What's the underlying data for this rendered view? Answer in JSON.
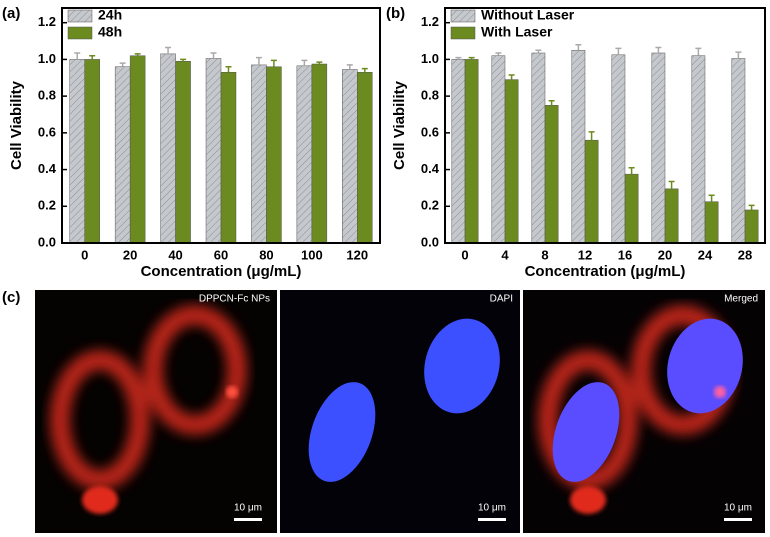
{
  "chart_data": [
    {
      "type": "bar",
      "ylabel": "Cell Viability",
      "xlabel": "Concentration (μg/mL)",
      "categories": [
        "0",
        "20",
        "40",
        "60",
        "80",
        "100",
        "120"
      ],
      "series": [
        {
          "name": "24h",
          "color": "#c5c8cc",
          "hatch": true,
          "values": [
            1.0,
            0.96,
            1.03,
            1.005,
            0.97,
            0.965,
            0.945
          ],
          "errors": [
            0.035,
            0.02,
            0.035,
            0.03,
            0.04,
            0.03,
            0.025
          ]
        },
        {
          "name": "48h",
          "color": "#6b8a1f",
          "hatch": false,
          "values": [
            1.0,
            1.02,
            0.99,
            0.93,
            0.96,
            0.975,
            0.93
          ],
          "errors": [
            0.02,
            0.01,
            0.01,
            0.03,
            0.035,
            0.01,
            0.02
          ]
        }
      ],
      "ylim": [
        0,
        1.28
      ],
      "yticks": [
        {
          "value": 0,
          "label": "0.0"
        },
        0.2,
        0.4,
        0.6,
        0.8,
        {
          "value": 1,
          "label": "1.0"
        },
        1.2
      ],
      "legend": "upper left"
    },
    {
      "type": "bar",
      "ylabel": "Cell Viability",
      "xlabel": "Concentration (μg/mL)",
      "categories": [
        "0",
        "4",
        "8",
        "12",
        "16",
        "20",
        "24",
        "28"
      ],
      "series": [
        {
          "name": "Without Laser",
          "color": "#c5c8cc",
          "hatch": true,
          "values": [
            1.0,
            1.02,
            1.035,
            1.05,
            1.025,
            1.035,
            1.02,
            1.005
          ],
          "errors": [
            0.01,
            0.015,
            0.015,
            0.03,
            0.035,
            0.03,
            0.04,
            0.035
          ]
        },
        {
          "name": "With Laser",
          "color": "#6b8a1f",
          "hatch": false,
          "values": [
            1.0,
            0.89,
            0.75,
            0.56,
            0.375,
            0.295,
            0.225,
            0.18
          ],
          "errors": [
            0.01,
            0.025,
            0.025,
            0.045,
            0.035,
            0.04,
            0.035,
            0.025
          ]
        }
      ],
      "ylim": [
        0,
        1.28
      ],
      "yticks": [
        {
          "value": 0,
          "label": "0.0"
        },
        0.2,
        0.4,
        0.6,
        0.8,
        {
          "value": 1,
          "label": "1.0"
        },
        1.2
      ],
      "legend": "upper left"
    }
  ],
  "figure": {
    "panel_labels": [
      "(a)",
      "(b)",
      "(c)"
    ],
    "images": [
      {
        "label": "DPPCN-Fc NPs",
        "scale_bar": "10 μm"
      },
      {
        "label": "DAPI",
        "scale_bar": "10 μm"
      },
      {
        "label": "Merged",
        "scale_bar": "10 μm"
      }
    ]
  }
}
